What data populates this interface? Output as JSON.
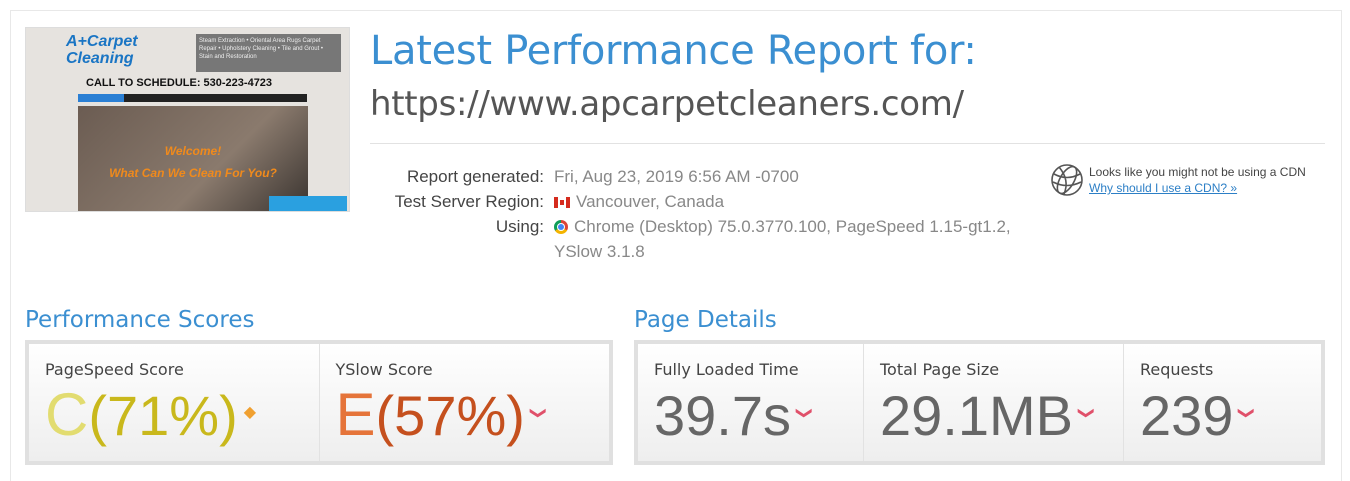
{
  "screenshot": {
    "logo_text": "A+Carpet Cleaning",
    "services": "Steam Extraction • Oriental Area Rugs Carpet Repair • Upholstery Cleaning • Tile and Grout • Stain and Restoration",
    "call": "CALL TO SCHEDULE: 530-223-4723",
    "hero_line1": "Welcome!",
    "hero_line2": "What Can We Clean For You?"
  },
  "header": {
    "title": "Latest Performance Report for:",
    "url": "https://www.apcarpetcleaners.com/"
  },
  "info": [
    {
      "label": "Report generated:",
      "value": "Fri, Aug 23, 2019 6:56 AM -0700",
      "icon": ""
    },
    {
      "label": "Test Server Region:",
      "value": "Vancouver, Canada",
      "icon": "canada-flag-icon"
    },
    {
      "label": "Using:",
      "value": "Chrome (Desktop) 75.0.3770.100, PageSpeed 1.15-gt1.2,",
      "value2": "YSlow 3.1.8",
      "icon": "chrome-icon"
    }
  ],
  "cdn": {
    "text": "Looks like you might not be using a CDN",
    "link": "Why should I use a CDN? »",
    "icon": "globe-icon"
  },
  "performance": {
    "heading": "Performance Scores",
    "pagespeed": {
      "label": "PageSpeed Score",
      "grade": "C",
      "pct": "(71%)",
      "trend": "neutral",
      "trend_glyph": "◆",
      "color": "#c9b81c",
      "trend_color": "#f0a030"
    },
    "yslow": {
      "label": "YSlow Score",
      "grade": "E",
      "pct": "(57%)",
      "trend": "down",
      "trend_glyph": "❯",
      "color": "#c5501e",
      "trend_color": "#e0506a"
    }
  },
  "details": {
    "heading": "Page Details",
    "items": [
      {
        "label": "Fully Loaded Time",
        "value": "39.7s",
        "trend": "down"
      },
      {
        "label": "Total Page Size",
        "value": "29.1MB",
        "trend": "down"
      },
      {
        "label": "Requests",
        "value": "239",
        "trend": "down"
      }
    ],
    "trend_glyph": "❯",
    "trend_color": "#e0506a"
  }
}
